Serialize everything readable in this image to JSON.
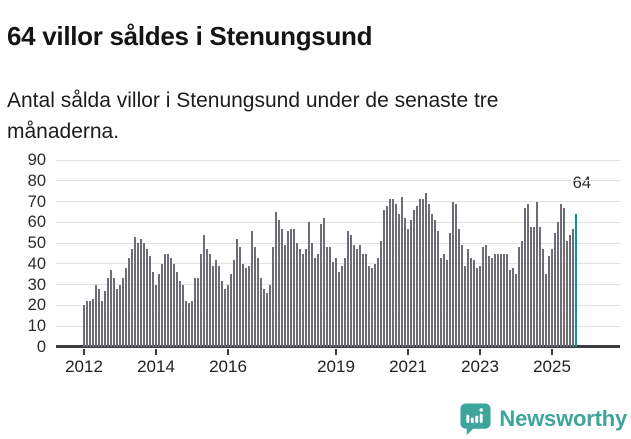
{
  "header": {
    "title": "64 villor såldes i Stenungsund",
    "subtitle": "Antal sålda villor i Stenungsund under de senaste tre månaderna."
  },
  "chart_data": {
    "type": "bar",
    "title": "64 villor såldes i Stenungsund",
    "subtitle": "Antal sålda villor i Stenungsund under de senaste tre månaderna.",
    "xlabel": "",
    "ylabel": "",
    "ylim": [
      0,
      90
    ],
    "y_ticks": [
      0,
      10,
      20,
      30,
      40,
      50,
      60,
      70,
      80,
      90
    ],
    "x_tick_labels": [
      "2012",
      "2014",
      "2016",
      "2019",
      "2021",
      "2023",
      "2025"
    ],
    "frequency": "monthly",
    "x_start": "2012-01",
    "x_end": "2025-09",
    "grid": "horizontal",
    "legend": "none",
    "annotation": {
      "text": "64",
      "target": "last-bar"
    },
    "highlight": {
      "index": "last"
    },
    "colors": {
      "bar": "#6d6d76",
      "highlight": "#079a91",
      "grid": "#e1e1e1",
      "axis": "#3b3b40"
    },
    "values": [
      20,
      22,
      22,
      23,
      30,
      28,
      22,
      27,
      33,
      37,
      33,
      28,
      30,
      33,
      38,
      43,
      47,
      53,
      50,
      52,
      50,
      47,
      44,
      36,
      30,
      35,
      40,
      45,
      45,
      43,
      40,
      36,
      32,
      30,
      22,
      21,
      22,
      33,
      33,
      45,
      54,
      47,
      45,
      39,
      42,
      39,
      32,
      28,
      30,
      35,
      42,
      52,
      48,
      40,
      38,
      39,
      56,
      48,
      43,
      33,
      28,
      26,
      30,
      48,
      65,
      61,
      57,
      49,
      56,
      57,
      57,
      50,
      47,
      45,
      47,
      60,
      50,
      43,
      45,
      59,
      62,
      48,
      48,
      41,
      43,
      36,
      39,
      43,
      56,
      54,
      49,
      47,
      49,
      45,
      45,
      39,
      38,
      40,
      43,
      51,
      66,
      68,
      71,
      71,
      69,
      64,
      72,
      62,
      57,
      61,
      66,
      68,
      71,
      71,
      74,
      69,
      64,
      61,
      56,
      43,
      45,
      42,
      55,
      70,
      69,
      57,
      49,
      39,
      47,
      43,
      42,
      38,
      39,
      48,
      49,
      44,
      43,
      45,
      45,
      45,
      45,
      45,
      37,
      38,
      35,
      48,
      51,
      67,
      69,
      58,
      58,
      70,
      58,
      47,
      35,
      44,
      47,
      55,
      60,
      69,
      67,
      51,
      54,
      57,
      64
    ]
  },
  "footer": {
    "brand": "Newsworthy",
    "logo_icon": "newsworthy-speech-bubble-chart-icon",
    "brand_color": "#3da59b"
  }
}
